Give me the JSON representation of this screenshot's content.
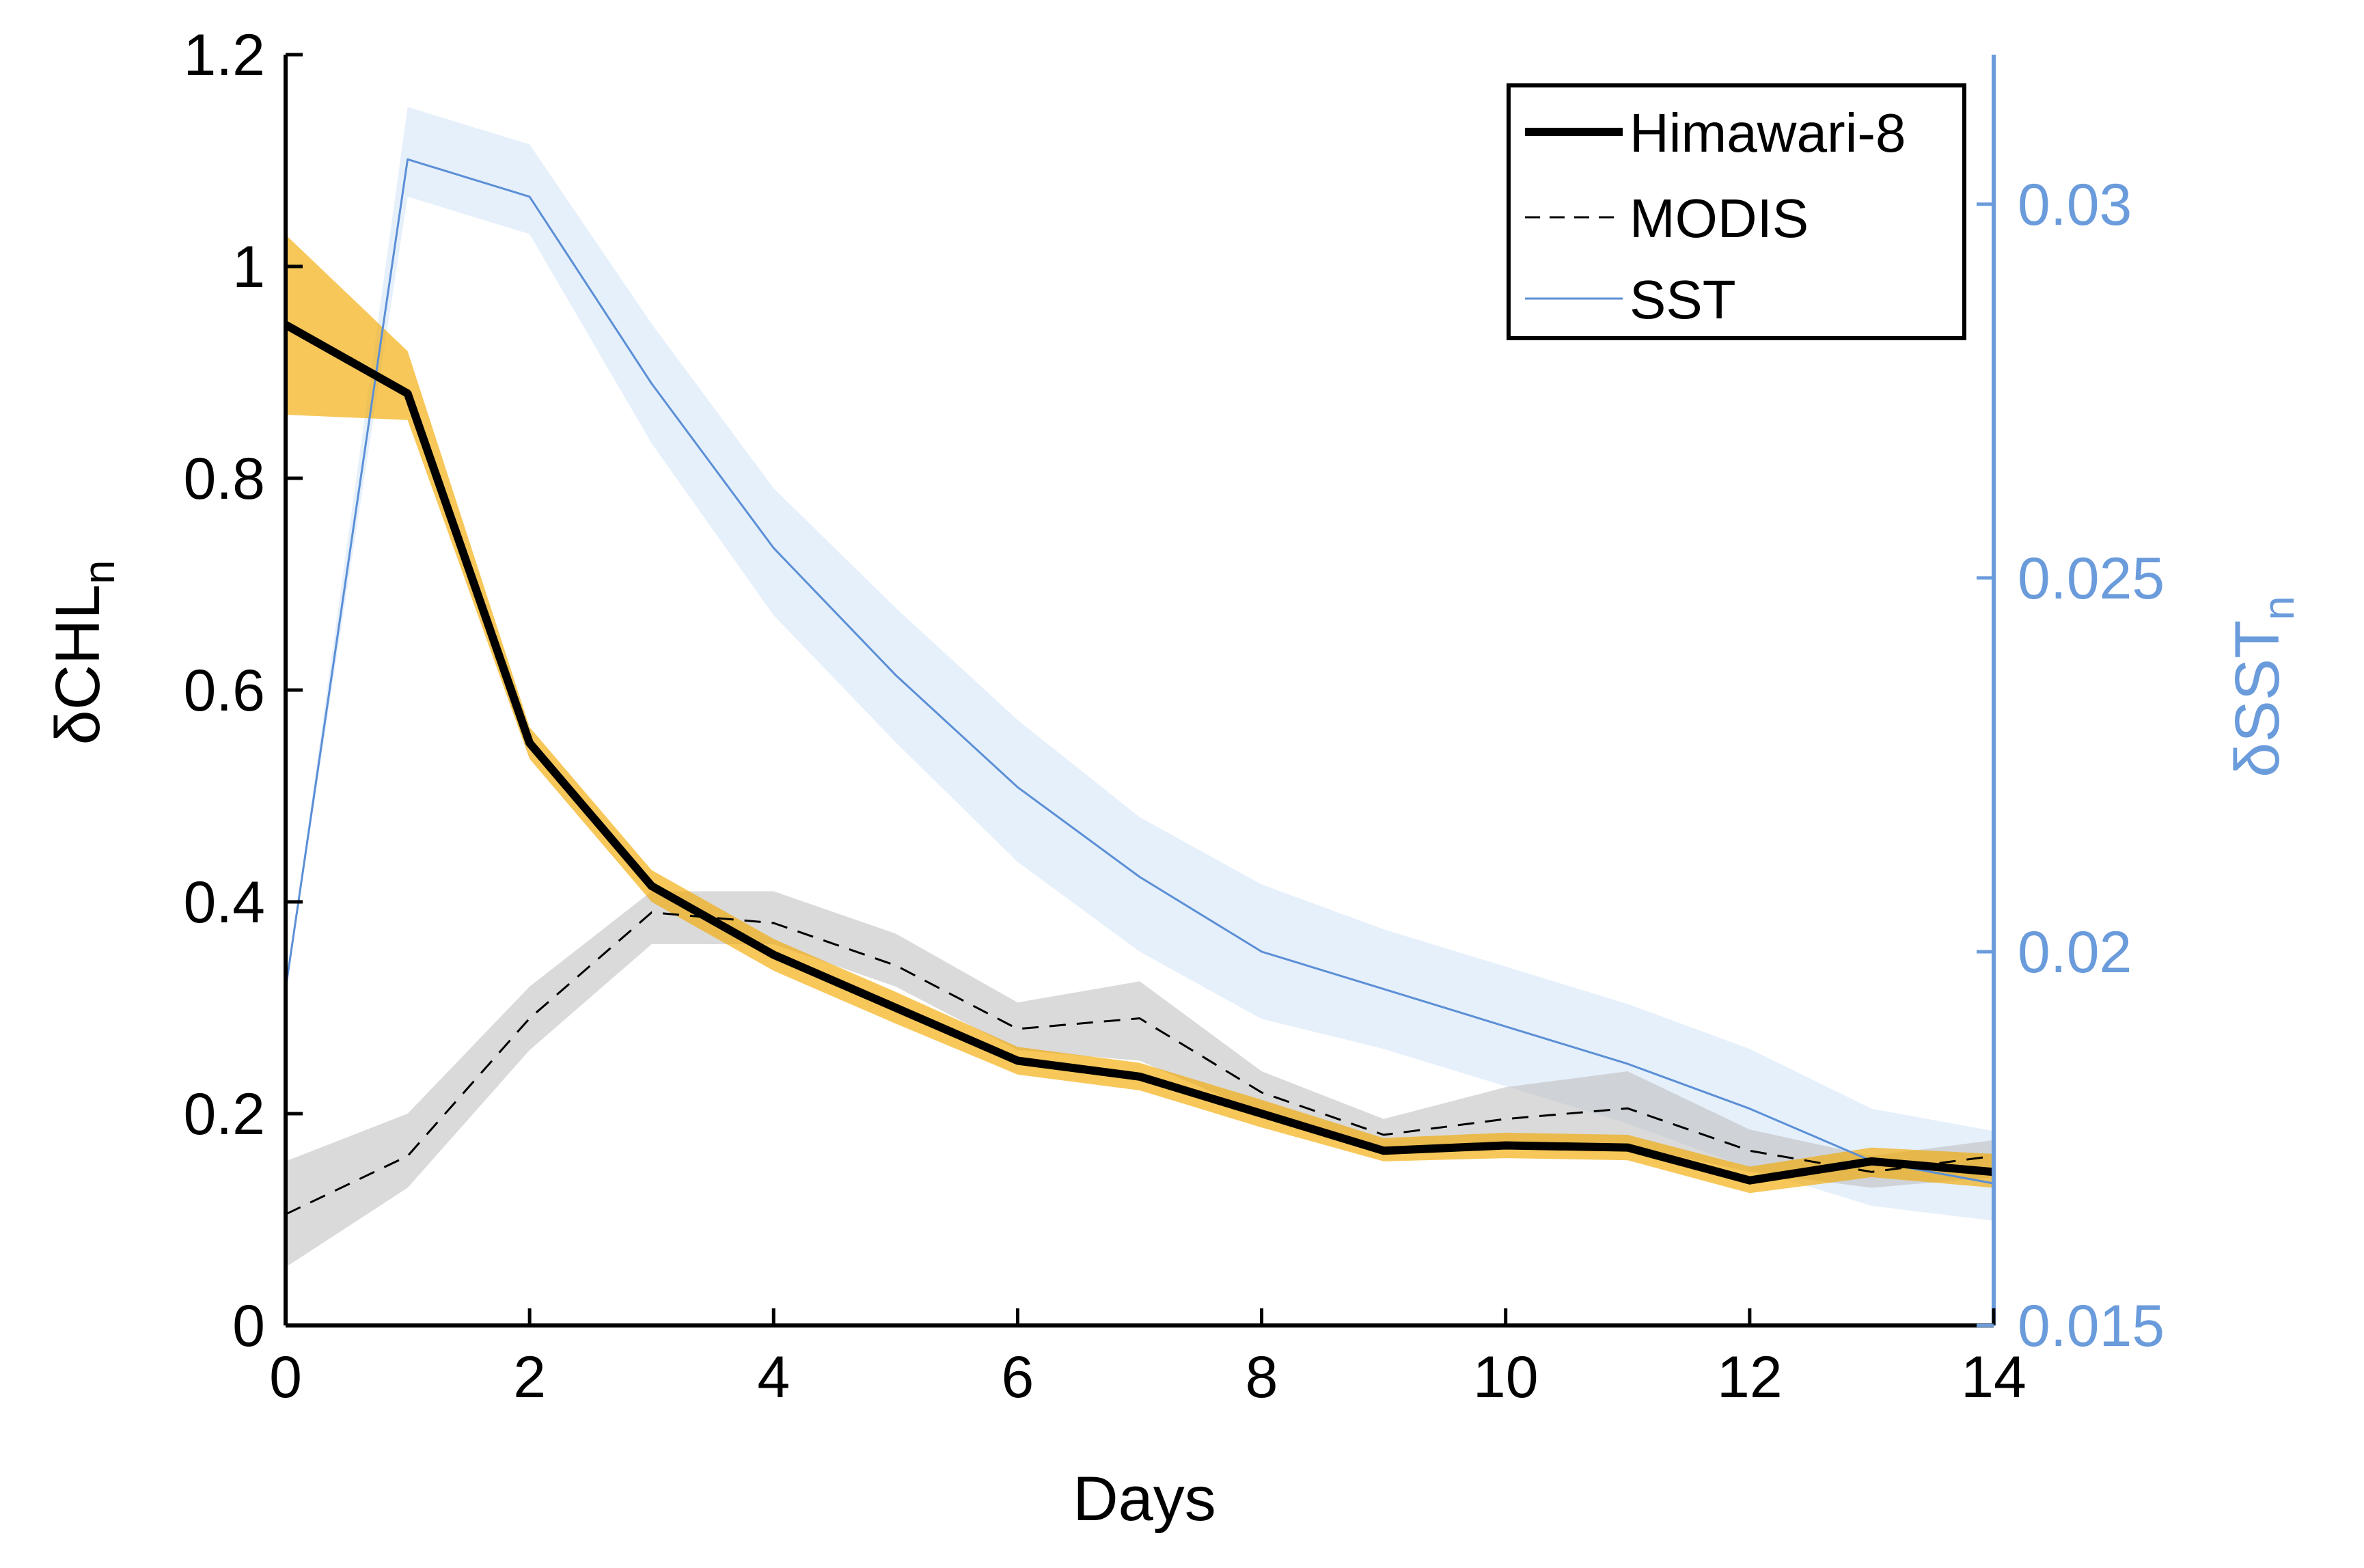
{
  "colors": {
    "main_line": "#000000",
    "himawari_band": "#F2A900",
    "modis_band": "#BBBBBB",
    "sst_line": "#5B8FD6",
    "sst_band": "#D6E6F8",
    "right_axis": "#6A9BDB",
    "left_axis": "#000000"
  },
  "chart_data": {
    "type": "line",
    "title": "",
    "xlabel": "Days",
    "ylabel": "δCHL",
    "ylabel_subscript": "n",
    "y2label": "δSST",
    "y2label_subscript": "n",
    "xlim": [
      0,
      14
    ],
    "ylim": [
      0,
      1.2
    ],
    "y2lim": [
      0.015,
      0.032
    ],
    "x_ticks": [
      0,
      2,
      4,
      6,
      8,
      10,
      12,
      14
    ],
    "x_tick_labels": [
      "0",
      "2",
      "4",
      "6",
      "8",
      "10",
      "12",
      "14"
    ],
    "y_ticks": [
      0,
      0.2,
      0.4,
      0.6,
      0.8,
      1,
      1.2
    ],
    "y_tick_labels": [
      "0",
      "0.2",
      "0.4",
      "0.6",
      "0.8",
      "1",
      "1.2"
    ],
    "y2_ticks": [
      0.015,
      0.02,
      0.025,
      0.03
    ],
    "y2_tick_labels": [
      "0.015",
      "0.02",
      "0.025",
      "0.03"
    ],
    "x": [
      0,
      1,
      2,
      3,
      4,
      5,
      6,
      7,
      8,
      9,
      10,
      11,
      12,
      13,
      14
    ],
    "legend_position": "top-right",
    "series": [
      {
        "name": "Himawari-8",
        "axis": "left",
        "style": "solid-thick",
        "values": [
          0.945,
          0.88,
          0.55,
          0.415,
          0.35,
          0.3,
          0.25,
          0.235,
          0.2,
          0.165,
          0.17,
          0.168,
          0.137,
          0.155,
          0.145
        ],
        "band_lower": [
          0.86,
          0.855,
          0.535,
          0.4,
          0.335,
          0.285,
          0.237,
          0.222,
          0.187,
          0.155,
          0.158,
          0.156,
          0.125,
          0.14,
          0.13
        ],
        "band_upper": [
          1.03,
          0.92,
          0.565,
          0.43,
          0.365,
          0.315,
          0.263,
          0.248,
          0.213,
          0.177,
          0.182,
          0.18,
          0.15,
          0.168,
          0.162
        ]
      },
      {
        "name": "MODIS",
        "axis": "left",
        "style": "dashed",
        "values": [
          0.105,
          0.16,
          0.29,
          0.39,
          0.38,
          0.34,
          0.28,
          0.29,
          0.22,
          0.18,
          0.195,
          0.205,
          0.165,
          0.145,
          0.16
        ],
        "band_lower": [
          0.055,
          0.13,
          0.26,
          0.36,
          0.36,
          0.32,
          0.26,
          0.25,
          0.2,
          0.165,
          0.17,
          0.17,
          0.145,
          0.13,
          0.14
        ],
        "band_upper": [
          0.155,
          0.2,
          0.32,
          0.41,
          0.41,
          0.37,
          0.305,
          0.325,
          0.24,
          0.195,
          0.225,
          0.24,
          0.185,
          0.16,
          0.175
        ]
      },
      {
        "name": "SST",
        "axis": "right",
        "style": "solid-thin",
        "values": [
          0.0195,
          0.0306,
          0.0301,
          0.0276,
          0.0254,
          0.0237,
          0.0222,
          0.021,
          0.02,
          0.0195,
          0.019,
          0.0185,
          0.0179,
          0.0172,
          0.0169
        ],
        "band_lower": [
          0.0195,
          0.0301,
          0.0296,
          0.0268,
          0.0245,
          0.0228,
          0.0212,
          0.02,
          0.0191,
          0.0187,
          0.0182,
          0.0177,
          0.0171,
          0.0166,
          0.0164
        ],
        "band_upper": [
          0.0195,
          0.0313,
          0.0308,
          0.0284,
          0.0262,
          0.0246,
          0.0231,
          0.0218,
          0.0209,
          0.0203,
          0.0198,
          0.0193,
          0.0187,
          0.0179,
          0.0176
        ]
      }
    ]
  }
}
